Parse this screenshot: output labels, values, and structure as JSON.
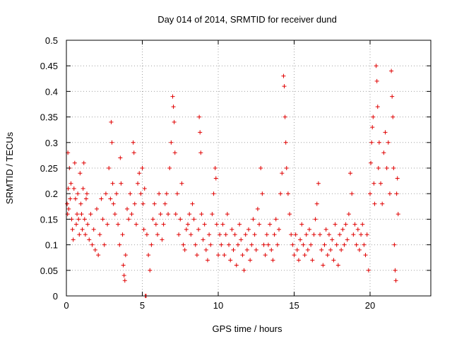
{
  "chart_data": {
    "type": "scatter",
    "title": "Day 014 of 2014, SRMTID for receiver dund",
    "xlabel": "GPS time / hours",
    "ylabel": "SRMTID / TECUs",
    "xlim": [
      0,
      24
    ],
    "ylim": [
      0,
      0.5
    ],
    "xticks": [
      0,
      5,
      10,
      15,
      20
    ],
    "xtick_labels": [
      "0",
      "5",
      "10",
      "15",
      "20"
    ],
    "yticks": [
      0,
      0.05,
      0.1,
      0.15,
      0.2,
      0.25,
      0.3,
      0.35,
      0.4,
      0.45,
      0.5
    ],
    "ytick_labels": [
      "0",
      "0.05",
      "0.1",
      "0.15",
      "0.2",
      "0.25",
      "0.3",
      "0.35",
      "0.4",
      "0.45",
      "0.5"
    ],
    "grid": true,
    "marker": "+",
    "color": "#e00000",
    "series": [
      {
        "name": "SRMTID",
        "points": [
          [
            0.05,
            0.18
          ],
          [
            0.08,
            0.16
          ],
          [
            0.1,
            0.28
          ],
          [
            0.12,
            0.21
          ],
          [
            0.15,
            0.17
          ],
          [
            0.2,
            0.25
          ],
          [
            0.25,
            0.19
          ],
          [
            0.3,
            0.22
          ],
          [
            0.35,
            0.15
          ],
          [
            0.4,
            0.13
          ],
          [
            0.45,
            0.11
          ],
          [
            0.5,
            0.21
          ],
          [
            0.55,
            0.26
          ],
          [
            0.6,
            0.19
          ],
          [
            0.65,
            0.14
          ],
          [
            0.7,
            0.16
          ],
          [
            0.75,
            0.2
          ],
          [
            0.8,
            0.15
          ],
          [
            0.85,
            0.12
          ],
          [
            0.9,
            0.24
          ],
          [
            0.95,
            0.18
          ],
          [
            1.0,
            0.16
          ],
          [
            1.05,
            0.13
          ],
          [
            1.1,
            0.21
          ],
          [
            1.15,
            0.26
          ],
          [
            1.2,
            0.15
          ],
          [
            1.25,
            0.12
          ],
          [
            1.3,
            0.19
          ],
          [
            1.35,
            0.2
          ],
          [
            1.4,
            0.14
          ],
          [
            1.5,
            0.11
          ],
          [
            1.6,
            0.16
          ],
          [
            1.7,
            0.1
          ],
          [
            1.8,
            0.13
          ],
          [
            1.9,
            0.09
          ],
          [
            2.0,
            0.17
          ],
          [
            2.1,
            0.08
          ],
          [
            2.2,
            0.12
          ],
          [
            2.3,
            0.19
          ],
          [
            2.4,
            0.15
          ],
          [
            2.5,
            0.1
          ],
          [
            2.6,
            0.2
          ],
          [
            2.7,
            0.14
          ],
          [
            2.8,
            0.25
          ],
          [
            2.9,
            0.19
          ],
          [
            2.95,
            0.34
          ],
          [
            3.0,
            0.3
          ],
          [
            3.05,
            0.22
          ],
          [
            3.1,
            0.18
          ],
          [
            3.2,
            0.16
          ],
          [
            3.3,
            0.2
          ],
          [
            3.4,
            0.14
          ],
          [
            3.5,
            0.1
          ],
          [
            3.55,
            0.27
          ],
          [
            3.6,
            0.22
          ],
          [
            3.7,
            0.12
          ],
          [
            3.75,
            0.06
          ],
          [
            3.8,
            0.04
          ],
          [
            3.85,
            0.03
          ],
          [
            3.9,
            0.08
          ],
          [
            4.0,
            0.17
          ],
          [
            4.1,
            0.15
          ],
          [
            4.2,
            0.2
          ],
          [
            4.3,
            0.16
          ],
          [
            4.4,
            0.3
          ],
          [
            4.45,
            0.28
          ],
          [
            4.5,
            0.18
          ],
          [
            4.6,
            0.14
          ],
          [
            4.7,
            0.22
          ],
          [
            4.8,
            0.24
          ],
          [
            4.9,
            0.2
          ],
          [
            5.0,
            0.25
          ],
          [
            5.05,
            0.18
          ],
          [
            5.1,
            0.13
          ],
          [
            5.15,
            0.21
          ],
          [
            5.2,
            0.0
          ],
          [
            5.25,
            0.0
          ],
          [
            5.3,
            0.12
          ],
          [
            5.4,
            0.08
          ],
          [
            5.5,
            0.05
          ],
          [
            5.6,
            0.1
          ],
          [
            5.7,
            0.15
          ],
          [
            5.8,
            0.18
          ],
          [
            5.9,
            0.14
          ],
          [
            6.0,
            0.12
          ],
          [
            6.1,
            0.2
          ],
          [
            6.2,
            0.16
          ],
          [
            6.3,
            0.11
          ],
          [
            6.4,
            0.14
          ],
          [
            6.5,
            0.18
          ],
          [
            6.6,
            0.2
          ],
          [
            6.7,
            0.16
          ],
          [
            6.8,
            0.25
          ],
          [
            6.9,
            0.3
          ],
          [
            7.0,
            0.39
          ],
          [
            7.05,
            0.37
          ],
          [
            7.1,
            0.34
          ],
          [
            7.15,
            0.28
          ],
          [
            7.2,
            0.16
          ],
          [
            7.3,
            0.2
          ],
          [
            7.4,
            0.12
          ],
          [
            7.5,
            0.15
          ],
          [
            7.6,
            0.22
          ],
          [
            7.7,
            0.1
          ],
          [
            7.8,
            0.09
          ],
          [
            7.9,
            0.13
          ],
          [
            8.0,
            0.14
          ],
          [
            8.1,
            0.16
          ],
          [
            8.2,
            0.12
          ],
          [
            8.3,
            0.18
          ],
          [
            8.4,
            0.15
          ],
          [
            8.5,
            0.1
          ],
          [
            8.6,
            0.08
          ],
          [
            8.7,
            0.13
          ],
          [
            8.75,
            0.35
          ],
          [
            8.8,
            0.32
          ],
          [
            8.85,
            0.28
          ],
          [
            8.9,
            0.16
          ],
          [
            9.0,
            0.11
          ],
          [
            9.1,
            0.14
          ],
          [
            9.2,
            0.09
          ],
          [
            9.3,
            0.07
          ],
          [
            9.4,
            0.12
          ],
          [
            9.5,
            0.1
          ],
          [
            9.6,
            0.16
          ],
          [
            9.7,
            0.2
          ],
          [
            9.8,
            0.25
          ],
          [
            9.85,
            0.23
          ],
          [
            9.9,
            0.14
          ],
          [
            10.0,
            0.08
          ],
          [
            10.1,
            0.12
          ],
          [
            10.2,
            0.1
          ],
          [
            10.3,
            0.14
          ],
          [
            10.4,
            0.08
          ],
          [
            10.5,
            0.12
          ],
          [
            10.6,
            0.16
          ],
          [
            10.7,
            0.1
          ],
          [
            10.8,
            0.07
          ],
          [
            10.9,
            0.13
          ],
          [
            11.0,
            0.09
          ],
          [
            11.1,
            0.12
          ],
          [
            11.2,
            0.06
          ],
          [
            11.3,
            0.1
          ],
          [
            11.4,
            0.14
          ],
          [
            11.5,
            0.11
          ],
          [
            11.6,
            0.08
          ],
          [
            11.7,
            0.05
          ],
          [
            11.8,
            0.12
          ],
          [
            11.9,
            0.09
          ],
          [
            12.0,
            0.13
          ],
          [
            12.1,
            0.07
          ],
          [
            12.2,
            0.1
          ],
          [
            12.3,
            0.15
          ],
          [
            12.4,
            0.12
          ],
          [
            12.5,
            0.09
          ],
          [
            12.6,
            0.17
          ],
          [
            12.7,
            0.14
          ],
          [
            12.8,
            0.25
          ],
          [
            12.9,
            0.2
          ],
          [
            13.0,
            0.1
          ],
          [
            13.1,
            0.08
          ],
          [
            13.2,
            0.12
          ],
          [
            13.3,
            0.1
          ],
          [
            13.4,
            0.14
          ],
          [
            13.5,
            0.09
          ],
          [
            13.6,
            0.07
          ],
          [
            13.7,
            0.12
          ],
          [
            13.8,
            0.15
          ],
          [
            13.9,
            0.1
          ],
          [
            14.0,
            0.13
          ],
          [
            14.1,
            0.2
          ],
          [
            14.2,
            0.24
          ],
          [
            14.3,
            0.43
          ],
          [
            14.35,
            0.41
          ],
          [
            14.4,
            0.35
          ],
          [
            14.45,
            0.3
          ],
          [
            14.5,
            0.25
          ],
          [
            14.6,
            0.2
          ],
          [
            14.7,
            0.16
          ],
          [
            14.8,
            0.12
          ],
          [
            14.9,
            0.1
          ],
          [
            15.0,
            0.08
          ],
          [
            15.1,
            0.12
          ],
          [
            15.2,
            0.09
          ],
          [
            15.3,
            0.07
          ],
          [
            15.4,
            0.11
          ],
          [
            15.5,
            0.14
          ],
          [
            15.6,
            0.1
          ],
          [
            15.7,
            0.08
          ],
          [
            15.8,
            0.12
          ],
          [
            15.9,
            0.09
          ],
          [
            16.0,
            0.13
          ],
          [
            16.1,
            0.1
          ],
          [
            16.2,
            0.07
          ],
          [
            16.3,
            0.12
          ],
          [
            16.4,
            0.15
          ],
          [
            16.5,
            0.18
          ],
          [
            16.6,
            0.22
          ],
          [
            16.7,
            0.12
          ],
          [
            16.8,
            0.09
          ],
          [
            16.9,
            0.06
          ],
          [
            17.0,
            0.1
          ],
          [
            17.1,
            0.13
          ],
          [
            17.2,
            0.08
          ],
          [
            17.3,
            0.12
          ],
          [
            17.4,
            0.09
          ],
          [
            17.5,
            0.11
          ],
          [
            17.6,
            0.07
          ],
          [
            17.7,
            0.14
          ],
          [
            17.8,
            0.1
          ],
          [
            17.9,
            0.06
          ],
          [
            18.0,
            0.12
          ],
          [
            18.1,
            0.09
          ],
          [
            18.2,
            0.13
          ],
          [
            18.3,
            0.1
          ],
          [
            18.4,
            0.14
          ],
          [
            18.5,
            0.11
          ],
          [
            18.6,
            0.16
          ],
          [
            18.7,
            0.24
          ],
          [
            18.8,
            0.2
          ],
          [
            18.9,
            0.12
          ],
          [
            19.0,
            0.14
          ],
          [
            19.1,
            0.1
          ],
          [
            19.2,
            0.13
          ],
          [
            19.3,
            0.09
          ],
          [
            19.4,
            0.12
          ],
          [
            19.5,
            0.14
          ],
          [
            19.6,
            0.1
          ],
          [
            19.7,
            0.08
          ],
          [
            19.8,
            0.12
          ],
          [
            19.9,
            0.05
          ],
          [
            20.0,
            0.2
          ],
          [
            20.05,
            0.26
          ],
          [
            20.1,
            0.3
          ],
          [
            20.15,
            0.33
          ],
          [
            20.2,
            0.35
          ],
          [
            20.25,
            0.22
          ],
          [
            20.3,
            0.18
          ],
          [
            20.4,
            0.45
          ],
          [
            20.45,
            0.42
          ],
          [
            20.5,
            0.37
          ],
          [
            20.55,
            0.25
          ],
          [
            20.6,
            0.3
          ],
          [
            20.7,
            0.22
          ],
          [
            20.8,
            0.18
          ],
          [
            20.9,
            0.28
          ],
          [
            21.0,
            0.32
          ],
          [
            21.1,
            0.25
          ],
          [
            21.2,
            0.3
          ],
          [
            21.3,
            0.2
          ],
          [
            21.4,
            0.44
          ],
          [
            21.45,
            0.39
          ],
          [
            21.5,
            0.35
          ],
          [
            21.55,
            0.25
          ],
          [
            21.6,
            0.1
          ],
          [
            21.65,
            0.05
          ],
          [
            21.7,
            0.03
          ],
          [
            21.75,
            0.2
          ],
          [
            21.8,
            0.23
          ],
          [
            21.85,
            0.16
          ]
        ]
      }
    ]
  }
}
